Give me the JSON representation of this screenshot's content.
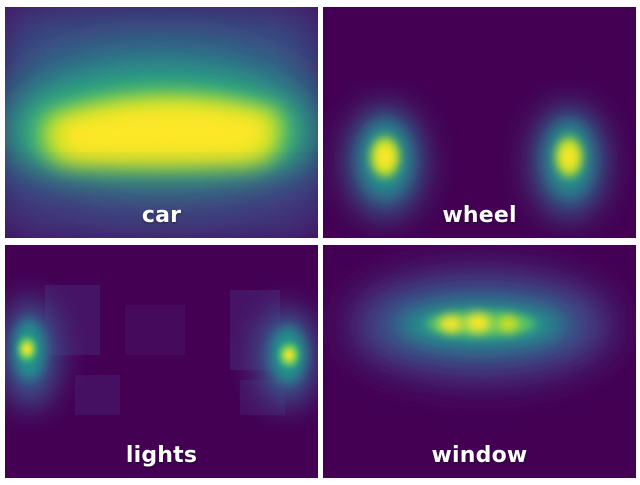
{
  "colors": {
    "background": "#440154",
    "low": "#31688e",
    "mid": "#35b779",
    "high": "#fde725",
    "label": "#ffffff"
  },
  "panels": [
    {
      "label": "car"
    },
    {
      "label": "wheel"
    },
    {
      "label": "lights"
    },
    {
      "label": "window"
    }
  ]
}
